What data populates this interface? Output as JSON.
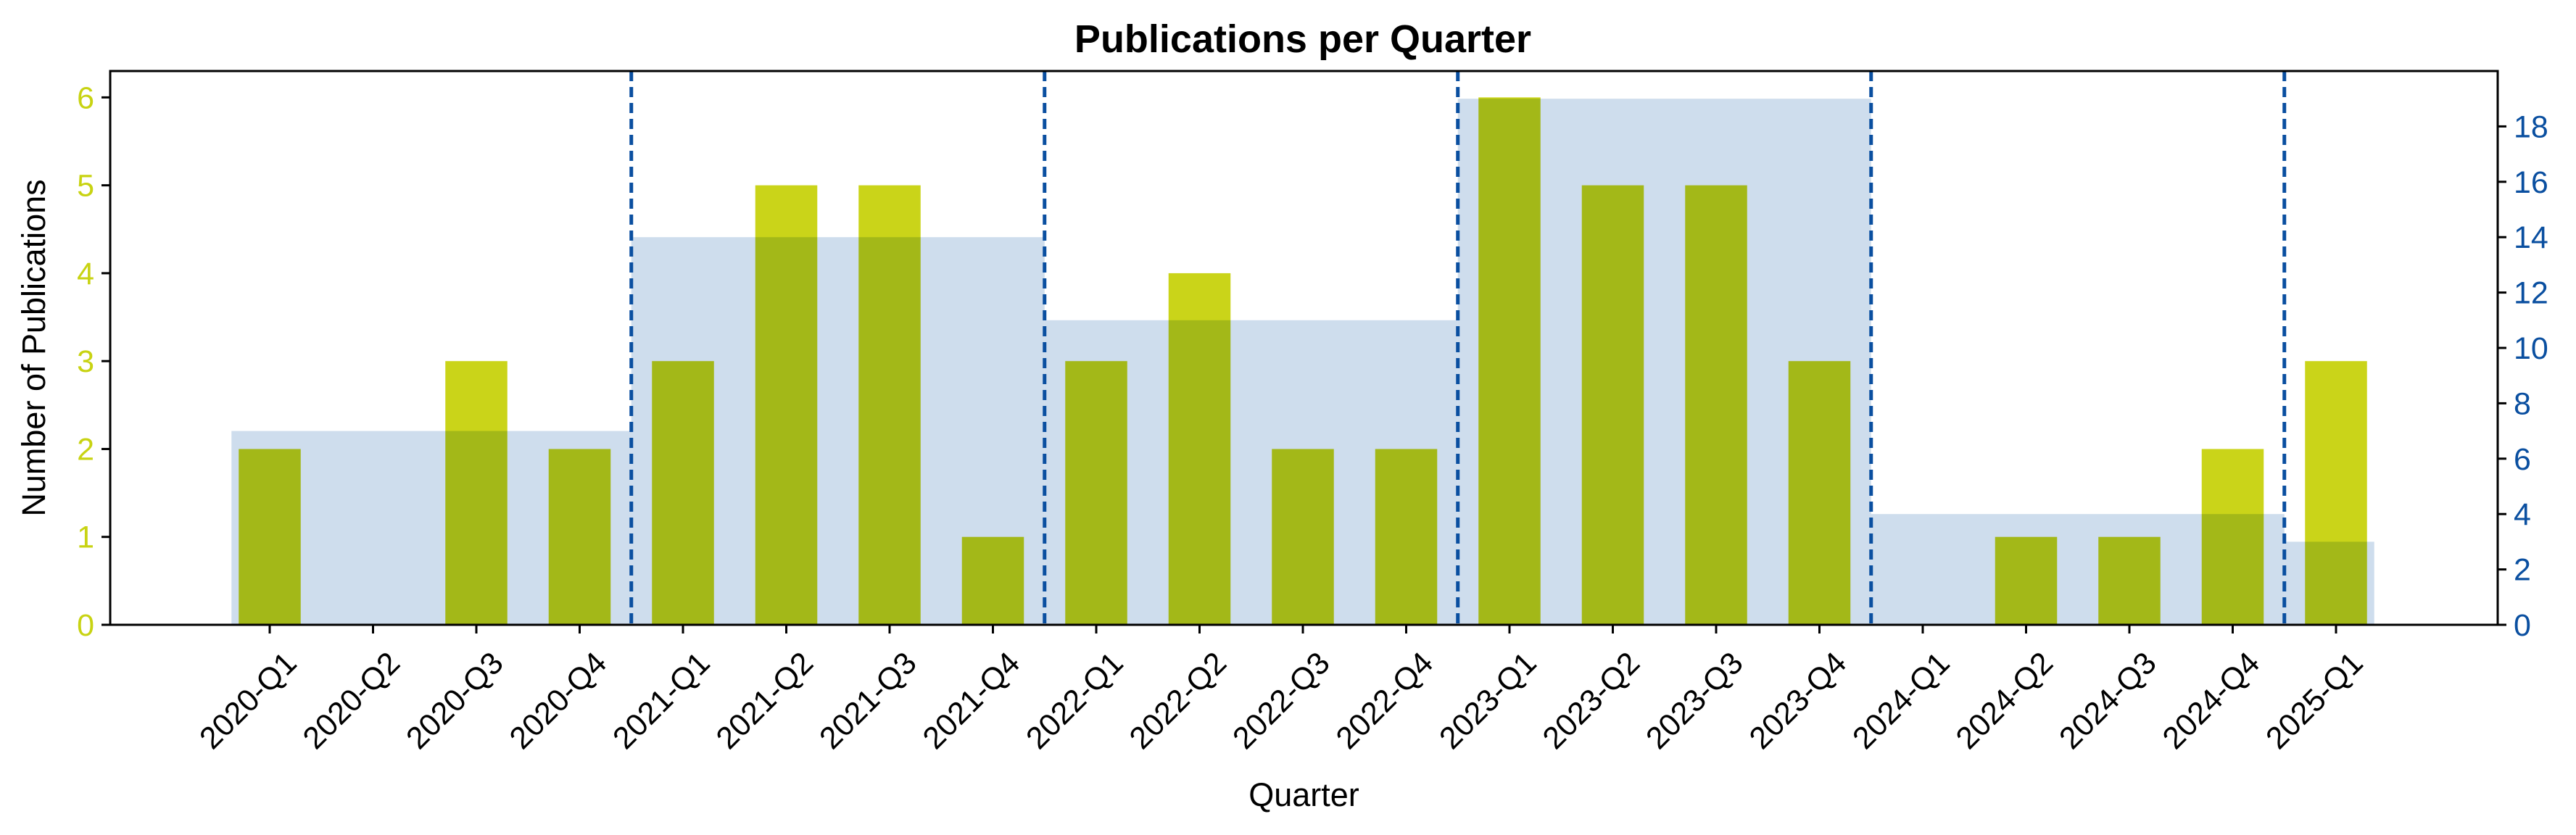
{
  "chart_data": {
    "type": "bar",
    "title": "Publications per Quarter",
    "xlabel": "Quarter",
    "ylabel": "Number of Publications",
    "ylabel_right": "",
    "categories": [
      "2020-Q1",
      "2020-Q2",
      "2020-Q3",
      "2020-Q4",
      "2021-Q1",
      "2021-Q2",
      "2021-Q3",
      "2021-Q4",
      "2022-Q1",
      "2022-Q2",
      "2022-Q3",
      "2022-Q4",
      "2023-Q1",
      "2023-Q2",
      "2023-Q3",
      "2023-Q4",
      "2024-Q1",
      "2024-Q2",
      "2024-Q3",
      "2024-Q4",
      "2025-Q1"
    ],
    "ylim": [
      0,
      6.3
    ],
    "yticks": [
      "0",
      "1",
      "2",
      "3",
      "4",
      "5",
      "6"
    ],
    "ylim_right": [
      0,
      20
    ],
    "yticks_right": [
      "0",
      "2",
      "4",
      "6",
      "8",
      "10",
      "12",
      "14",
      "16",
      "18"
    ],
    "series": [
      {
        "values": [
          2,
          0,
          3,
          2,
          3,
          5,
          5,
          1,
          3,
          4,
          2,
          2,
          6,
          5,
          5,
          3,
          0,
          1,
          1,
          2,
          3
        ],
        "color": "#c8d312"
      }
    ],
    "yearly_series": [
      {
        "period": "2020",
        "value": 7
      },
      {
        "period": "2021",
        "value": 14
      },
      {
        "period": "2022",
        "value": 11
      },
      {
        "period": "2023",
        "value": 19
      },
      {
        "period": "2024",
        "value": 4
      },
      {
        "period": "2025",
        "value": 3
      }
    ],
    "yearly_color": "#a9c3df",
    "year_divider_color": "#0a4fa0",
    "left_axis_color": "#c8d312",
    "right_axis_color": "#0a4fa0",
    "grid": false
  }
}
